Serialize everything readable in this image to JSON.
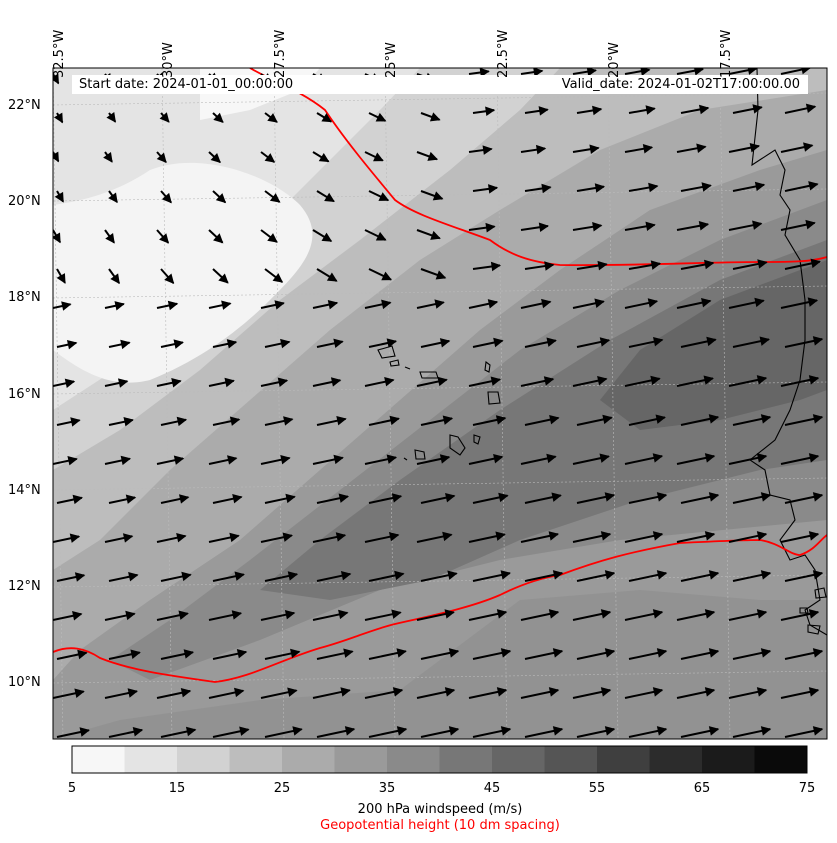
{
  "info": {
    "start_date": "Start date: 2024-01-01_00:00:00",
    "valid_date": "Valid_date: 2024-01-02T17:00:00.00"
  },
  "lat_labels": [
    "22°N",
    "20°N",
    "18°N",
    "16°N",
    "14°N",
    "12°N",
    "10°N"
  ],
  "lon_labels": [
    "32.5°W",
    "30°W",
    "27.5°W",
    "25°W",
    "22.5°W",
    "20°W",
    "17.5°W"
  ],
  "colorbar": {
    "ticks": [
      "5",
      "15",
      "25",
      "35",
      "45",
      "55",
      "65",
      "75"
    ],
    "label": "200 hPa windspeed (m/s)",
    "sublabel": "Geopotential height (10 dm spacing)",
    "colors": [
      "#f7f7f7",
      "#e4e4e4",
      "#d2d2d2",
      "#bdbdbd",
      "#ababab",
      "#9a9a9a",
      "#8a8a8a",
      "#777777",
      "#666666",
      "#555555",
      "#3f3f3f",
      "#2c2c2c",
      "#1b1b1b",
      "#0a0a0a"
    ]
  },
  "contour_color": "#ff0000"
}
